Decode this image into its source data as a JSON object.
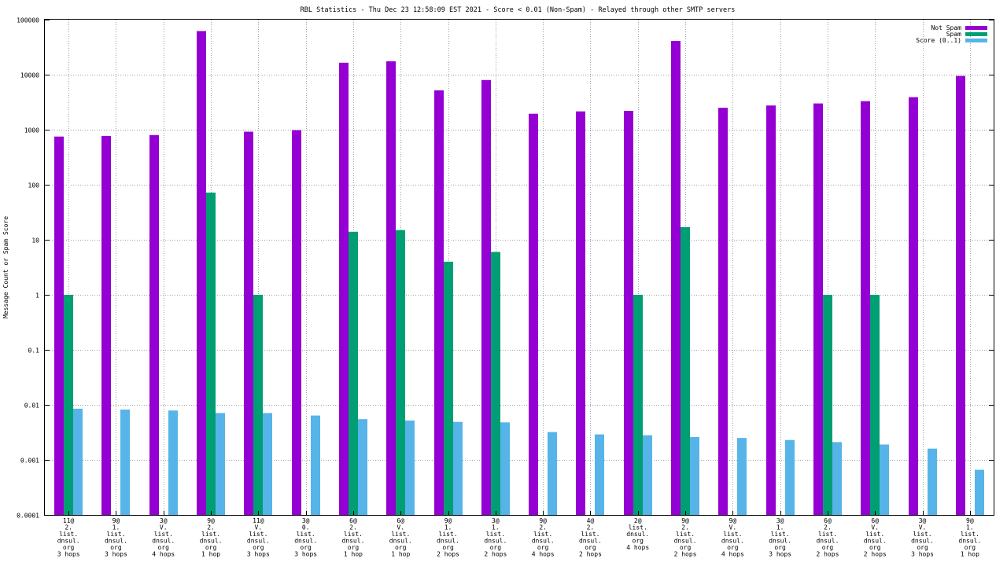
{
  "chart_data": {
    "type": "bar",
    "title": "RBL Statistics - Thu Dec 23 12:58:09 EST 2021 - Score < 0.01 (Non-Spam) - Relayed through other SMTP servers",
    "xlabel": "",
    "ylabel": "Message Count or Spam Score",
    "yscale": "log",
    "ylim": [
      0.0001,
      100000
    ],
    "yticks": [
      "0.0001",
      "0.001",
      "0.01",
      "0.1",
      "1",
      "10",
      "100",
      "1000",
      "10000",
      "100000"
    ],
    "grid": true,
    "legend_position": "top-right",
    "categories": [
      [
        "11@",
        "2.",
        "list.",
        "dnsul.",
        "org",
        "3 hops"
      ],
      [
        "9@",
        "1.",
        "list.",
        "dnsul.",
        "org",
        "3 hops"
      ],
      [
        "3@",
        "V.",
        "list.",
        "dnsul.",
        "org",
        "4 hops"
      ],
      [
        "9@",
        "2.",
        "list.",
        "dnsul.",
        "org",
        "1 hop"
      ],
      [
        "11@",
        "V.",
        "list.",
        "dnsul.",
        "org",
        "3 hops"
      ],
      [
        "3@",
        "0.",
        "list.",
        "dnsul.",
        "org",
        "3 hops"
      ],
      [
        "6@",
        "2.",
        "list.",
        "dnsul.",
        "org",
        "1 hop"
      ],
      [
        "6@",
        "V.",
        "list.",
        "dnsul.",
        "org",
        "1 hop"
      ],
      [
        "9@",
        "1.",
        "list.",
        "dnsul.",
        "org",
        "2 hops"
      ],
      [
        "3@",
        "1.",
        "list.",
        "dnsul.",
        "org",
        "2 hops"
      ],
      [
        "9@",
        "2.",
        "list.",
        "dnsul.",
        "org",
        "4 hops"
      ],
      [
        "4@",
        "2.",
        "list.",
        "dnsul.",
        "org",
        "2 hops"
      ],
      [
        "2@",
        "list.",
        "dnsul.",
        "org",
        "4 hops"
      ],
      [
        "9@",
        "2.",
        "list.",
        "dnsul.",
        "org",
        "2 hops"
      ],
      [
        "9@",
        "V.",
        "list.",
        "dnsul.",
        "org",
        "4 hops"
      ],
      [
        "3@",
        "1.",
        "list.",
        "dnsul.",
        "org",
        "3 hops"
      ],
      [
        "6@",
        "2.",
        "list.",
        "dnsul.",
        "org",
        "2 hops"
      ],
      [
        "6@",
        "V.",
        "list.",
        "dnsul.",
        "org",
        "2 hops"
      ],
      [
        "3@",
        "V.",
        "list.",
        "dnsul.",
        "org",
        "3 hops"
      ],
      [
        "9@",
        "1.",
        "list.",
        "dnsul.",
        "org",
        "1 hop"
      ]
    ],
    "series": [
      {
        "name": "Not Spam",
        "color": "#9400d3",
        "values": [
          750,
          770,
          800,
          62000,
          920,
          980,
          16500,
          17500,
          5200,
          8000,
          1950,
          2150,
          2200,
          41000,
          2500,
          2750,
          3000,
          3300,
          3900,
          9500
        ]
      },
      {
        "name": "Spam",
        "color": "#009e73",
        "values": [
          1,
          0,
          0,
          72,
          1,
          0,
          14,
          15,
          4,
          6,
          0,
          0,
          1,
          17,
          0,
          0,
          1,
          1,
          0,
          0
        ]
      },
      {
        "name": "Score (0..1)",
        "color": "#56b4e9",
        "values": [
          0.0085,
          0.0082,
          0.0079,
          0.0071,
          0.0071,
          0.0064,
          0.0055,
          0.0052,
          0.0049,
          0.0048,
          0.0032,
          0.0029,
          0.0028,
          0.0026,
          0.0025,
          0.0023,
          0.0021,
          0.0019,
          0.0016,
          0.00066
        ]
      }
    ]
  }
}
